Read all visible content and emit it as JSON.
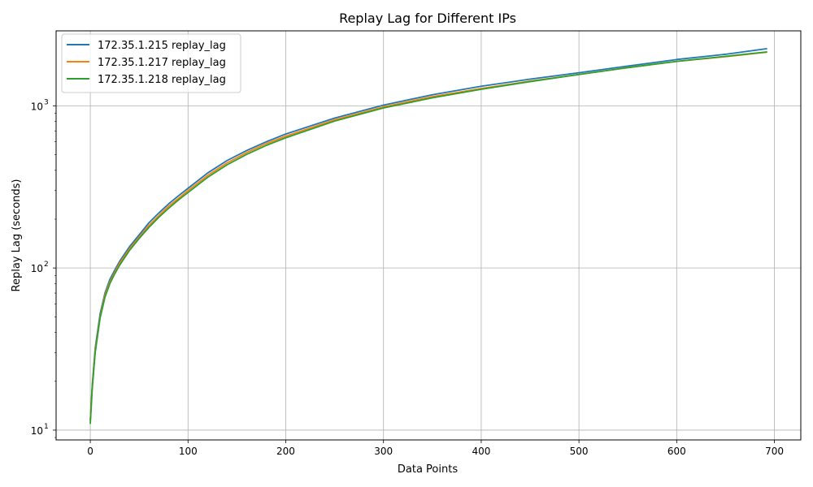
{
  "chart_data": {
    "type": "line",
    "title": "Replay Lag for Different IPs",
    "xlabel": "Data Points",
    "ylabel": "Replay Lag (seconds)",
    "xlim": [
      -35,
      727
    ],
    "ylim": [
      8.7,
      2900
    ],
    "yscale": "log",
    "grid": true,
    "legend_position": "top-left",
    "xticks": [
      0,
      100,
      200,
      300,
      400,
      500,
      600,
      700
    ],
    "xtick_labels": [
      "0",
      "100",
      "200",
      "300",
      "400",
      "500",
      "600",
      "700"
    ],
    "yticks": [
      10,
      100,
      1000
    ],
    "ytick_labels": [
      "10",
      "10",
      "10"
    ],
    "ytick_exponents": [
      "1",
      "2",
      "3"
    ],
    "x": [
      0,
      2,
      5,
      10,
      15,
      20,
      25,
      30,
      40,
      50,
      60,
      70,
      80,
      90,
      100,
      120,
      140,
      160,
      180,
      200,
      250,
      300,
      350,
      400,
      450,
      500,
      550,
      600,
      650,
      692
    ],
    "series": [
      {
        "name": "172.35.1.215 replay_lag",
        "color": "#1f77b4",
        "values": [
          11.5,
          19,
          32,
          52,
          70,
          85,
          97,
          110,
          135,
          160,
          190,
          218,
          248,
          278,
          310,
          385,
          460,
          530,
          600,
          670,
          840,
          1010,
          1170,
          1320,
          1460,
          1600,
          1760,
          1930,
          2080,
          2250
        ]
      },
      {
        "name": "172.35.1.217 replay_lag",
        "color": "#ff7f0e",
        "values": [
          11.5,
          18.5,
          31,
          50,
          68,
          82,
          94,
          107,
          131,
          155,
          183,
          210,
          240,
          268,
          300,
          372,
          445,
          515,
          585,
          650,
          820,
          985,
          1140,
          1280,
          1420,
          1560,
          1720,
          1880,
          2010,
          2140
        ]
      },
      {
        "name": "172.35.1.218 replay_lag",
        "color": "#2ca02c",
        "values": [
          11.0,
          18,
          30,
          49,
          66,
          80,
          92,
          104,
          128,
          152,
          178,
          205,
          233,
          262,
          292,
          362,
          433,
          502,
          570,
          635,
          805,
          970,
          1120,
          1265,
          1410,
          1560,
          1720,
          1880,
          2020,
          2150
        ]
      }
    ]
  }
}
